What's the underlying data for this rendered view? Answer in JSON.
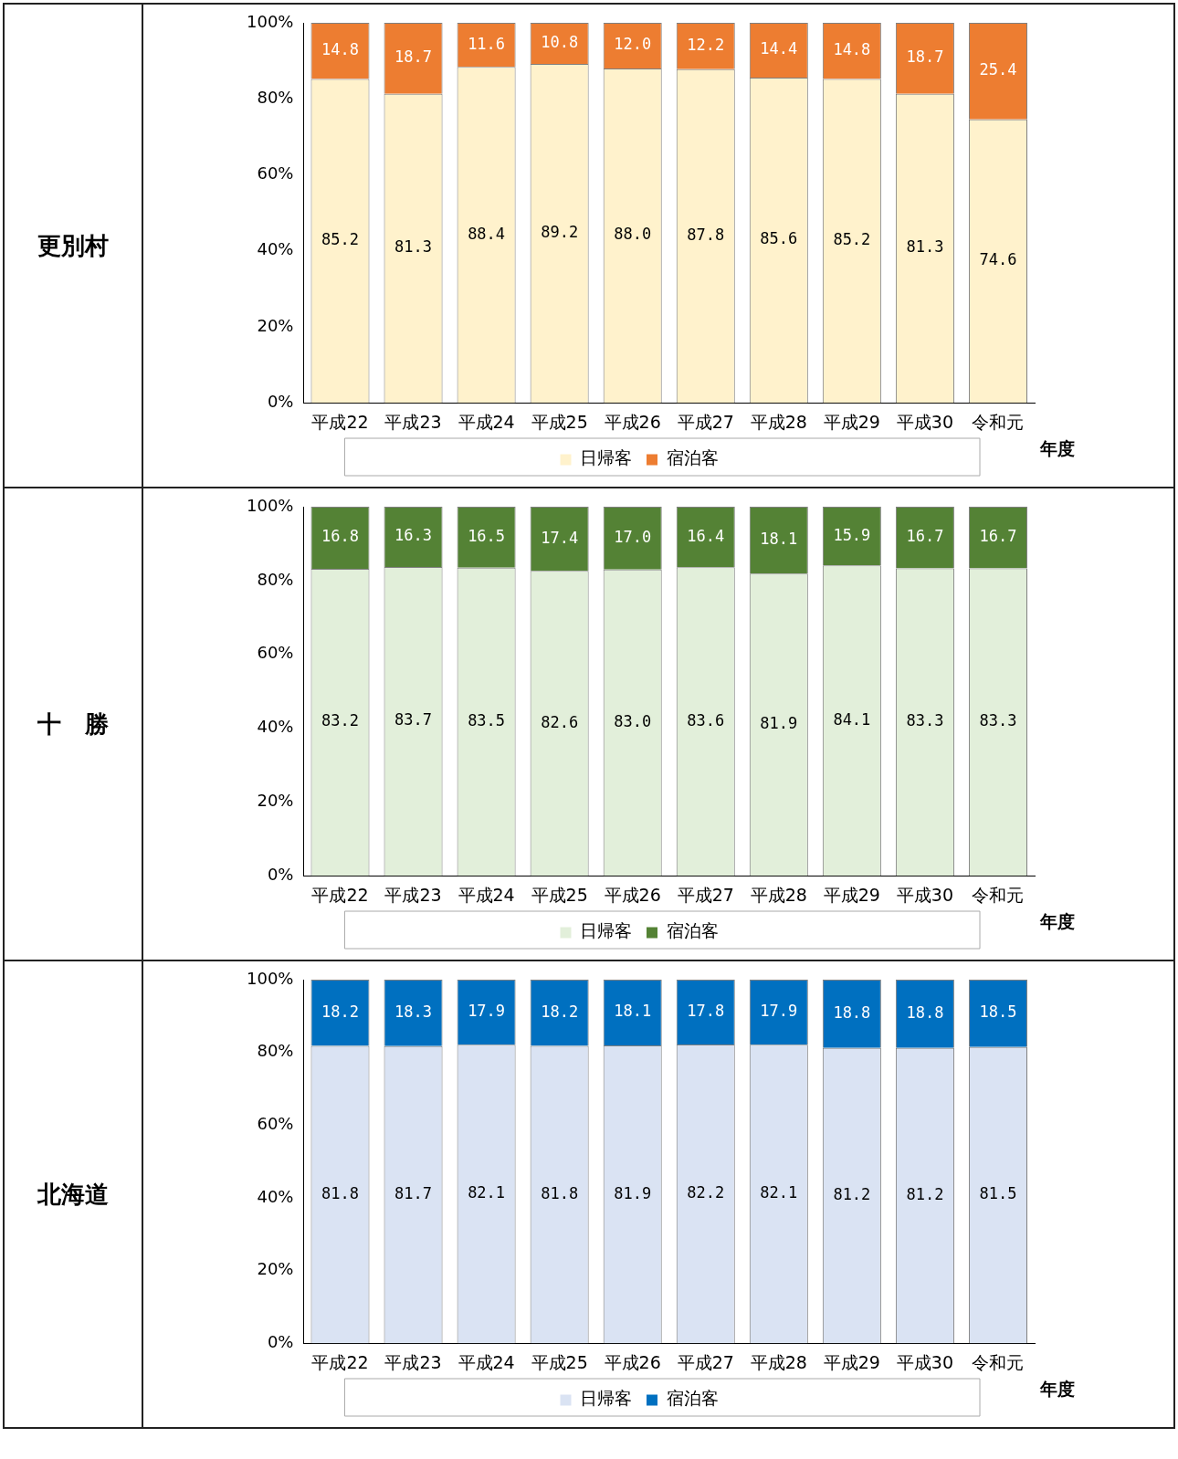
{
  "chart_data": [
    {
      "type": "bar",
      "title": "更別村",
      "stacked": true,
      "legend": "bottom",
      "xlabel": "年度",
      "categories": [
        "平成22",
        "平成23",
        "平成24",
        "平成25",
        "平成26",
        "平成27",
        "平成28",
        "平成29",
        "平成30",
        "令和元"
      ],
      "ylim": [
        0,
        100
      ],
      "yticks": [
        {
          "value": 0,
          "label": "0%"
        },
        {
          "value": 20,
          "label": "20%"
        },
        {
          "value": 40,
          "label": "40%"
        },
        {
          "value": 60,
          "label": "60%"
        },
        {
          "value": 80,
          "label": "80%"
        },
        {
          "value": 100,
          "label": "100%"
        }
      ],
      "grid": false,
      "series": [
        {
          "name": "日帰客",
          "color": "#fff2cc",
          "values": [
            85.2,
            81.3,
            88.4,
            89.2,
            88.0,
            87.8,
            85.6,
            85.2,
            81.3,
            74.6
          ],
          "value_labels": [
            "85.2",
            "81.3",
            "88.4",
            "89.2",
            "88.0",
            "87.8",
            "85.6",
            "85.2",
            "81.3",
            "74.6"
          ]
        },
        {
          "name": "宿泊客",
          "color": "#ed7d31",
          "values": [
            14.8,
            18.7,
            11.6,
            10.8,
            12.0,
            12.2,
            14.4,
            14.8,
            18.7,
            25.4
          ],
          "value_labels": [
            "14.8",
            "18.7",
            "11.6",
            "10.8",
            "12.0",
            "12.2",
            "14.4",
            "14.8",
            "18.7",
            "25.4"
          ]
        }
      ]
    },
    {
      "type": "bar",
      "title": "十　勝",
      "stacked": true,
      "legend": "bottom",
      "xlabel": "年度",
      "categories": [
        "平成22",
        "平成23",
        "平成24",
        "平成25",
        "平成26",
        "平成27",
        "平成28",
        "平成29",
        "平成30",
        "令和元"
      ],
      "ylim": [
        0,
        100
      ],
      "yticks": [
        {
          "value": 0,
          "label": "0%"
        },
        {
          "value": 20,
          "label": "20%"
        },
        {
          "value": 40,
          "label": "40%"
        },
        {
          "value": 60,
          "label": "60%"
        },
        {
          "value": 80,
          "label": "80%"
        },
        {
          "value": 100,
          "label": "100%"
        }
      ],
      "grid": false,
      "series": [
        {
          "name": "日帰客",
          "color": "#e2efda",
          "values": [
            83.2,
            83.7,
            83.5,
            82.6,
            83.0,
            83.6,
            81.9,
            84.1,
            83.3,
            83.3
          ],
          "value_labels": [
            "83.2",
            "83.7",
            "83.5",
            "82.6",
            "83.0",
            "83.6",
            "81.9",
            "84.1",
            "83.3",
            "83.3"
          ]
        },
        {
          "name": "宿泊客",
          "color": "#548235",
          "values": [
            16.8,
            16.3,
            16.5,
            17.4,
            17.0,
            16.4,
            18.1,
            15.9,
            16.7,
            16.7
          ],
          "value_labels": [
            "16.8",
            "16.3",
            "16.5",
            "17.4",
            "17.0",
            "16.4",
            "18.1",
            "15.9",
            "16.7",
            "16.7"
          ]
        }
      ]
    },
    {
      "type": "bar",
      "title": "北海道",
      "stacked": true,
      "legend": "bottom",
      "xlabel": "年度",
      "categories": [
        "平成22",
        "平成23",
        "平成24",
        "平成25",
        "平成26",
        "平成27",
        "平成28",
        "平成29",
        "平成30",
        "令和元"
      ],
      "ylim": [
        0,
        100
      ],
      "yticks": [
        {
          "value": 0,
          "label": "0%"
        },
        {
          "value": 20,
          "label": "20%"
        },
        {
          "value": 40,
          "label": "40%"
        },
        {
          "value": 60,
          "label": "60%"
        },
        {
          "value": 80,
          "label": "80%"
        },
        {
          "value": 100,
          "label": "100%"
        }
      ],
      "grid": false,
      "series": [
        {
          "name": "日帰客",
          "color": "#dae3f3",
          "values": [
            81.8,
            81.7,
            82.1,
            81.8,
            81.9,
            82.2,
            82.1,
            81.2,
            81.2,
            81.5
          ],
          "value_labels": [
            "81.8",
            "81.7",
            "82.1",
            "81.8",
            "81.9",
            "82.2",
            "82.1",
            "81.2",
            "81.2",
            "81.5"
          ]
        },
        {
          "name": "宿泊客",
          "color": "#0070c0",
          "values": [
            18.2,
            18.3,
            17.9,
            18.2,
            18.1,
            17.8,
            17.9,
            18.8,
            18.8,
            18.5
          ],
          "value_labels": [
            "18.2",
            "18.3",
            "17.9",
            "18.2",
            "18.1",
            "17.8",
            "17.9",
            "18.8",
            "18.8",
            "18.5"
          ]
        }
      ]
    }
  ]
}
